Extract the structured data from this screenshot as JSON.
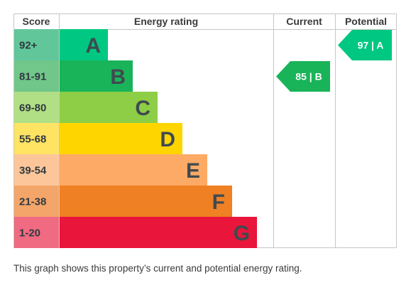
{
  "chart_data": {
    "type": "table",
    "headers": {
      "score": "Score",
      "rating": "Energy rating",
      "current": "Current",
      "potential": "Potential"
    },
    "bands": [
      {
        "letter": "A",
        "range": "92+",
        "color": "#00c781",
        "score_color": "#61c79a"
      },
      {
        "letter": "B",
        "range": "81-91",
        "color": "#19b459",
        "score_color": "#71c689"
      },
      {
        "letter": "C",
        "range": "69-80",
        "color": "#8dce46",
        "score_color": "#b1df85"
      },
      {
        "letter": "D",
        "range": "55-68",
        "color": "#ffd500",
        "score_color": "#ffe363"
      },
      {
        "letter": "E",
        "range": "39-54",
        "color": "#fcaa65",
        "score_color": "#fdc69a"
      },
      {
        "letter": "F",
        "range": "21-38",
        "color": "#ef8023",
        "score_color": "#f4a569"
      },
      {
        "letter": "G",
        "range": "1-20",
        "color": "#e9153b",
        "score_color": "#f06a82"
      }
    ],
    "current": {
      "value": 85,
      "band": "B",
      "label": "85 | B",
      "color": "#19b459"
    },
    "potential": {
      "value": 97,
      "band": "A",
      "label": "97 | A",
      "color": "#00c781"
    }
  },
  "caption": "This graph shows this property’s current and potential energy rating."
}
